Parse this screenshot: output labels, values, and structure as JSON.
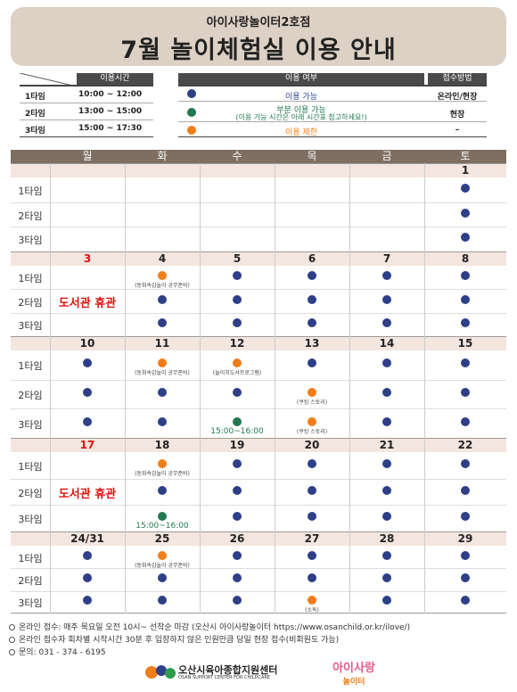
{
  "header": {
    "subtitle": "아이사랑놀이터2호점",
    "title": "7월 놀이체험실 이용 안내"
  },
  "time_table": {
    "header": "이용시간",
    "rows": [
      {
        "label": "1타임",
        "time": "10:00 ~ 12:00"
      },
      {
        "label": "2타임",
        "time": "13:00 ~ 15:00"
      },
      {
        "label": "3타임",
        "time": "15:00 ~ 17:30"
      }
    ]
  },
  "legend": {
    "header_status": "이용 여부",
    "header_method": "접수방법",
    "rows": [
      {
        "color": "blue",
        "text": "이용 가능",
        "note": "",
        "method": "온라인/현장"
      },
      {
        "color": "green",
        "text": "부분 이용 가능",
        "note": "(이용 가능 시간은 아래 시간표 참고하세요!)",
        "method": "현장"
      },
      {
        "color": "orange",
        "text": "이용 제한",
        "note": "",
        "method": "–"
      }
    ]
  },
  "calendar": {
    "days": [
      "월",
      "화",
      "수",
      "목",
      "금",
      "토"
    ],
    "time_labels": [
      "1타임",
      "2타임",
      "3타임"
    ],
    "closed_text": "도서관 휴관",
    "dongsum_note": "(동화속감놀이 공무준비)",
    "library_note": "(놀이치도서프로그램)",
    "cooking_note": "(쿠킹 스토리)",
    "sodok_note": "(소독)",
    "partial_time": "15:00~16:00",
    "weeks": [
      {
        "dates": [
          "",
          "",
          "",
          "",
          "",
          "1"
        ]
      },
      {
        "dates": [
          "3",
          "4",
          "5",
          "6",
          "7",
          "8"
        ]
      },
      {
        "dates": [
          "10",
          "11",
          "12",
          "13",
          "14",
          "15"
        ]
      },
      {
        "dates": [
          "17",
          "18",
          "19",
          "20",
          "21",
          "22"
        ]
      },
      {
        "dates": [
          "24/31",
          "25",
          "26",
          "27",
          "28",
          "29"
        ]
      }
    ]
  },
  "footer": {
    "lines": [
      "온라인 접수: 매주 목요일 오전 10시~ 선착순 마감 (오산시 아이사랑놀이터 https://www.osanchild.or.kr/ilove/)",
      "온라인 접수자 회차별 시작시간 30분 후 입장하지 않은 인원만큼 당일 현장 접수(비회원도 가능)",
      "문의: 031 - 374 - 6195"
    ],
    "org_name": "오산시육아종합지원센터",
    "org_name_en": "OSAN SUPPORT CENTER FOR CHILDCARE",
    "brand_top": "아이사랑",
    "brand_bottom": "놀이터"
  },
  "colors": {
    "blue": "#2e3f88",
    "orange": "#f07d18",
    "green": "#217852",
    "red": "#e01010"
  }
}
